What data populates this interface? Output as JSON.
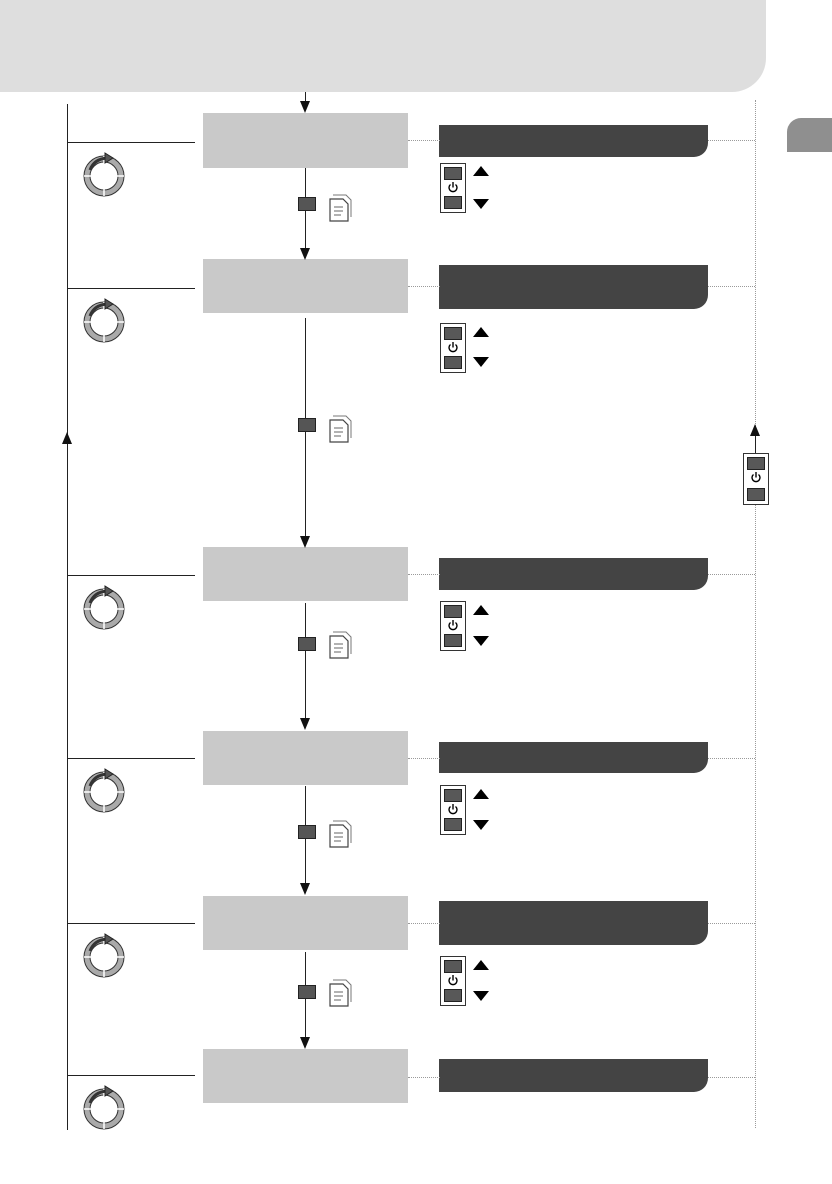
{
  "header": {
    "title": ""
  },
  "page_tab": {
    "label": ""
  },
  "steps": [
    {
      "label": "",
      "bar_label": ""
    },
    {
      "label": "",
      "bar_label": ""
    },
    {
      "label": "",
      "bar_label": ""
    },
    {
      "label": "",
      "bar_label": ""
    },
    {
      "label": "",
      "bar_label": ""
    },
    {
      "label": "",
      "bar_label": ""
    }
  ],
  "colors": {
    "header_band": "#dedede",
    "step_box": "#c9c9c9",
    "dark_bar": "#444444",
    "page_tab": "#8f8f8f",
    "button": "#585858"
  },
  "icons": {
    "cycle": "cycle-arrow-icon",
    "stop": "stop-square-icon",
    "document": "document-pages-icon",
    "power": "power-icon",
    "up": "arrow-up-icon",
    "down": "arrow-down-icon"
  }
}
